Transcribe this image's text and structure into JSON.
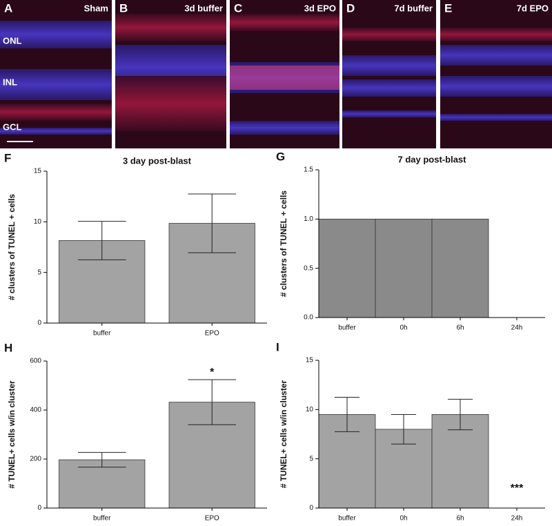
{
  "images": [
    {
      "panel": "A",
      "label": "Sham",
      "layer_labels": [
        "ONL",
        "INL",
        "GCL"
      ]
    },
    {
      "panel": "B",
      "label": "3d buffer"
    },
    {
      "panel": "C",
      "label": "3d EPO"
    },
    {
      "panel": "D",
      "label": "7d buffer"
    },
    {
      "panel": "E",
      "label": "7d EPO"
    }
  ],
  "chart_data": [
    {
      "type": "bar",
      "panel": "F",
      "title": "3 day post-blast",
      "ylabel": "# clusters of TUNEL + cells",
      "categories": [
        "buffer",
        "EPO"
      ],
      "values": [
        8.15,
        9.85
      ],
      "errors": [
        1.9,
        2.9
      ],
      "color": "#a3a3a3",
      "ylim": [
        0,
        15
      ],
      "yticks": [
        0,
        5,
        10,
        15
      ]
    },
    {
      "type": "bar",
      "panel": "G",
      "title": "7 day post-blast",
      "ylabel": "# clusters of TUNEL + cells",
      "categories": [
        "buffer",
        "0h",
        "6h",
        "24h"
      ],
      "values": [
        1,
        1,
        1,
        0
      ],
      "color": "#8a8a8a",
      "ylim": [
        0,
        1.5
      ],
      "yticks": [
        {
          "value": 0,
          "label": "0.0"
        },
        0.5,
        {
          "value": 1,
          "label": "1.0"
        },
        1.5
      ]
    },
    {
      "type": "bar",
      "panel": "H",
      "ylabel": "# TUNEL+ cells w/in cluster",
      "categories": [
        "buffer",
        "EPO"
      ],
      "values": [
        197,
        432
      ],
      "errors": [
        30,
        92
      ],
      "color": "#a3a3a3",
      "ylim": [
        0,
        600
      ],
      "yticks": [
        0,
        200,
        400,
        600
      ],
      "annotations": [
        {
          "category": "EPO",
          "text": "*"
        }
      ]
    },
    {
      "type": "bar",
      "panel": "I",
      "ylabel": "# TUNEL+ cells w/in cluster",
      "categories": [
        "buffer",
        "0h",
        "6h",
        "24h"
      ],
      "values": [
        9.5,
        8.0,
        9.5,
        0
      ],
      "errors": [
        1.75,
        1.5,
        1.55,
        0
      ],
      "color": "#a3a3a3",
      "ylim": [
        0,
        15
      ],
      "yticks": [
        0,
        5,
        10,
        15
      ],
      "annotations": [
        {
          "category": "24h",
          "text": "***"
        }
      ]
    }
  ]
}
